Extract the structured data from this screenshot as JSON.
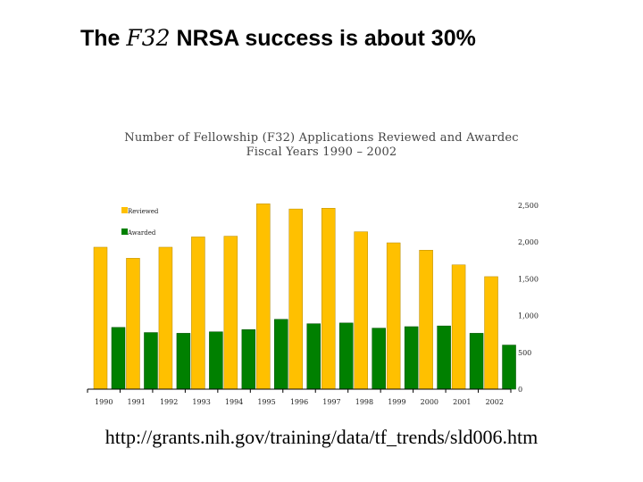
{
  "slide": {
    "title_before": "The ",
    "title_emph": "F32",
    "title_after": " NRSA success is about 30%",
    "url": "http://grants.nih.gov/training/data/tf_trends/sld006.htm"
  },
  "chart_data": {
    "type": "bar",
    "title_line1": "Number of Fellowship (F32) Applications Reviewed and Awardec",
    "title_line2": "Fiscal Years 1990 – 2002",
    "categories": [
      "1990",
      "1991",
      "1992",
      "1993",
      "1994",
      "1995",
      "1996",
      "1997",
      "1998",
      "1999",
      "2000",
      "2001",
      "2002"
    ],
    "series": [
      {
        "name": "Reviewed",
        "color": "#ffc000",
        "values": [
          1930,
          1780,
          1930,
          2070,
          2080,
          2520,
          2450,
          2460,
          2140,
          1990,
          1890,
          1690,
          1530
        ]
      },
      {
        "name": "Awarded",
        "color": "#008000",
        "values": [
          840,
          770,
          760,
          780,
          810,
          950,
          890,
          900,
          830,
          850,
          860,
          760,
          600
        ]
      }
    ],
    "ylim": [
      0,
      2500
    ],
    "yticks": [
      0,
      500,
      1000,
      1500,
      2000,
      2500
    ],
    "ytick_labels": [
      "0",
      "500",
      "1,000",
      "1,500",
      "2,000",
      "2,500"
    ],
    "legend_position": "top-left",
    "grid": false
  }
}
